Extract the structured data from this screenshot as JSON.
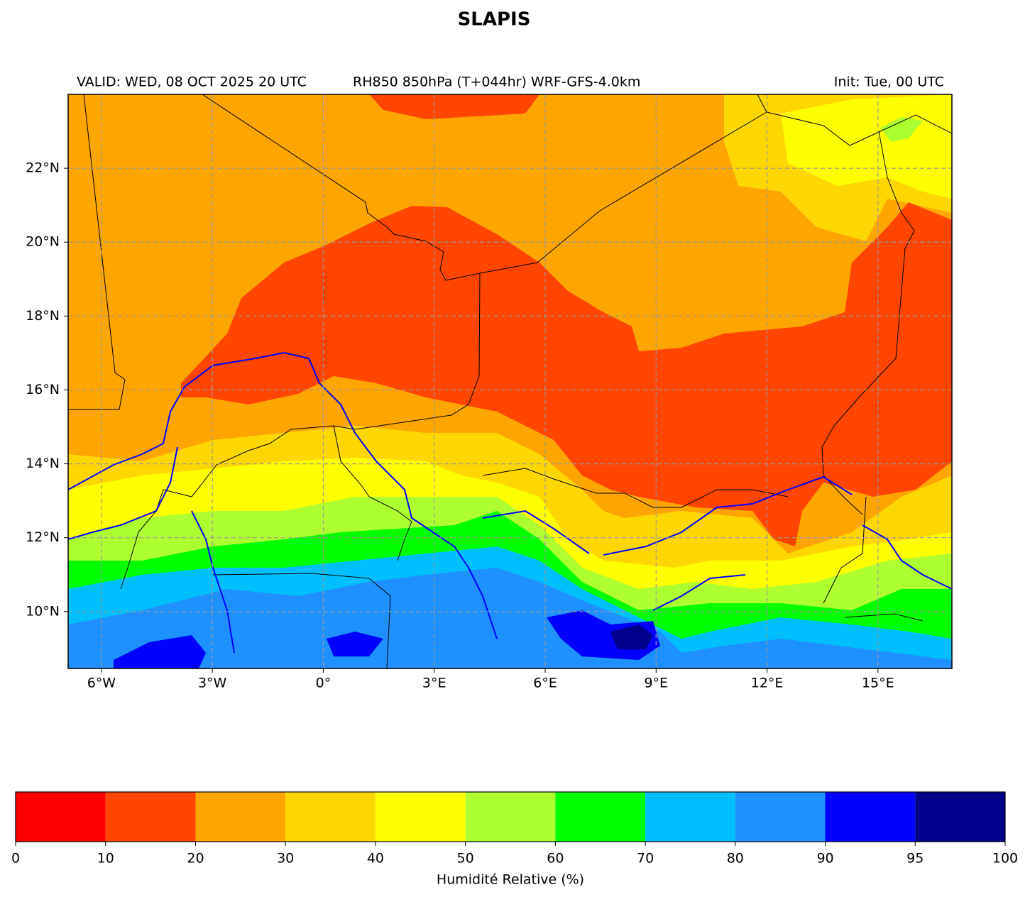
{
  "chart_data": {
    "type": "map",
    "title": "SLAPIS",
    "valid": "VALID: WED, 08 OCT 2025 20 UTC",
    "subtitle": "RH850 850hPa (T+044hr) WRF-GFS-4.0km",
    "init": "Init: Tue, 00 UTC",
    "xlim": [
      -6.9,
      17
    ],
    "ylim": [
      8.46,
      24
    ],
    "xticks": [
      {
        "value": -6,
        "label": "6°W"
      },
      {
        "value": -3,
        "label": "3°W"
      },
      {
        "value": 0,
        "label": "0°"
      },
      {
        "value": 3,
        "label": "3°E"
      },
      {
        "value": 6,
        "label": "6°E"
      },
      {
        "value": 9,
        "label": "9°E"
      },
      {
        "value": 12,
        "label": "12°E"
      },
      {
        "value": 15,
        "label": "15°E"
      }
    ],
    "yticks": [
      {
        "value": 10,
        "label": "10°N"
      },
      {
        "value": 12,
        "label": "12°N"
      },
      {
        "value": 14,
        "label": "14°N"
      },
      {
        "value": 16,
        "label": "16°N"
      },
      {
        "value": 18,
        "label": "18°N"
      },
      {
        "value": 20,
        "label": "20°N"
      },
      {
        "value": 22,
        "label": "22°N"
      }
    ],
    "grid": true,
    "colorbar": {
      "label": "Humidité Relative (%)",
      "ticks": [
        0,
        10,
        20,
        30,
        40,
        50,
        60,
        70,
        80,
        90,
        95,
        100
      ],
      "colors": [
        "#ff0000",
        "#ff4500",
        "#ffa500",
        "#ffd700",
        "#ffff00",
        "#adff2f",
        "#00ff00",
        "#00bfff",
        "#1e90ff",
        "#0000ff",
        "#00008b"
      ]
    }
  }
}
